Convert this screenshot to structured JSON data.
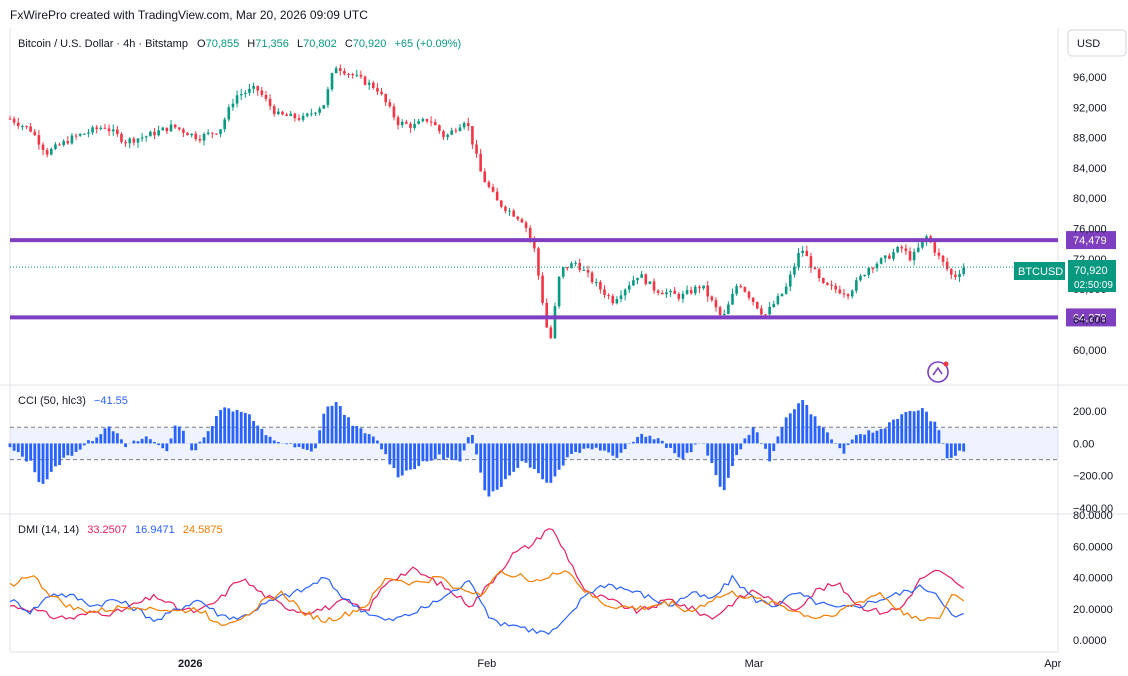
{
  "header": {
    "attribution": "FxWirePro created with TradingView.com, Mar 20, 2026 09:09 UTC",
    "currency": "USD"
  },
  "legend": {
    "symbol": "Bitcoin / U.S. Dollar · 4h · Bitstamp",
    "open_label": "O",
    "open": "70,855",
    "high_label": "H",
    "high": "71,356",
    "low_label": "L",
    "low": "70,802",
    "close_label": "C",
    "close": "70,920",
    "change": "+65 (+0.09%)"
  },
  "price_tag": {
    "ticker": "BTCUSD",
    "price": "70,920",
    "countdown": "02:50:09"
  },
  "colors": {
    "up": "#089981",
    "down": "#f23645",
    "level": "#7e3fc0",
    "cci": "#2962ff",
    "dmi_plus": "#e91e63",
    "dmi_minus": "#2962ff",
    "adx": "#f57c00"
  },
  "chart_data": [
    {
      "type": "candlestick",
      "title": "Bitcoin / U.S. Dollar · 4h · Bitstamp",
      "x_ticks": [
        "2026",
        "Feb",
        "Mar",
        "Apr"
      ],
      "y_ticks": [
        "60,000",
        "64,000",
        "68,000",
        "72,000",
        "76,000",
        "80,000",
        "84,000",
        "88,000",
        "92,000",
        "96,000"
      ],
      "ylim": [
        58000,
        98500
      ],
      "levels": [
        {
          "value": 74479,
          "label": "74,479"
        },
        {
          "value": 64278,
          "label": "64,278"
        }
      ],
      "last_price": 70920,
      "path": [
        {
          "x": 0.0,
          "y": 90500
        },
        {
          "x": 0.02,
          "y": 89000
        },
        {
          "x": 0.035,
          "y": 86000
        },
        {
          "x": 0.06,
          "y": 88000
        },
        {
          "x": 0.09,
          "y": 89500
        },
        {
          "x": 0.11,
          "y": 87500
        },
        {
          "x": 0.13,
          "y": 88200
        },
        {
          "x": 0.155,
          "y": 89500
        },
        {
          "x": 0.18,
          "y": 88000
        },
        {
          "x": 0.2,
          "y": 89000
        },
        {
          "x": 0.215,
          "y": 93500
        },
        {
          "x": 0.235,
          "y": 94500
        },
        {
          "x": 0.255,
          "y": 91000
        },
        {
          "x": 0.28,
          "y": 90500
        },
        {
          "x": 0.3,
          "y": 92500
        },
        {
          "x": 0.31,
          "y": 97500
        },
        {
          "x": 0.33,
          "y": 96000
        },
        {
          "x": 0.35,
          "y": 94500
        },
        {
          "x": 0.37,
          "y": 90000
        },
        {
          "x": 0.385,
          "y": 89500
        },
        {
          "x": 0.4,
          "y": 90500
        },
        {
          "x": 0.415,
          "y": 88000
        },
        {
          "x": 0.435,
          "y": 90500
        },
        {
          "x": 0.45,
          "y": 83000
        },
        {
          "x": 0.465,
          "y": 79500
        },
        {
          "x": 0.49,
          "y": 77000
        },
        {
          "x": 0.5,
          "y": 73500
        },
        {
          "x": 0.515,
          "y": 60500
        },
        {
          "x": 0.525,
          "y": 70500
        },
        {
          "x": 0.54,
          "y": 71500
        },
        {
          "x": 0.56,
          "y": 68500
        },
        {
          "x": 0.575,
          "y": 66500
        },
        {
          "x": 0.6,
          "y": 70000
        },
        {
          "x": 0.615,
          "y": 68000
        },
        {
          "x": 0.64,
          "y": 67000
        },
        {
          "x": 0.66,
          "y": 68500
        },
        {
          "x": 0.68,
          "y": 64000
        },
        {
          "x": 0.695,
          "y": 69000
        },
        {
          "x": 0.72,
          "y": 64500
        },
        {
          "x": 0.74,
          "y": 68000
        },
        {
          "x": 0.755,
          "y": 73500
        },
        {
          "x": 0.775,
          "y": 68500
        },
        {
          "x": 0.8,
          "y": 67500
        },
        {
          "x": 0.82,
          "y": 71000
        },
        {
          "x": 0.835,
          "y": 72000
        },
        {
          "x": 0.85,
          "y": 73500
        },
        {
          "x": 0.86,
          "y": 72000
        },
        {
          "x": 0.875,
          "y": 75000
        },
        {
          "x": 0.885,
          "y": 72500
        },
        {
          "x": 0.9,
          "y": 69500
        },
        {
          "x": 0.91,
          "y": 70920
        }
      ]
    },
    {
      "type": "bar",
      "title": "CCI (50, hlc3)",
      "value_label": "−41.55",
      "y_ticks": [
        "200.00",
        "0.00",
        "−200.00",
        "−400.00"
      ],
      "ylim": [
        -400,
        300
      ],
      "band": [
        -100,
        100
      ],
      "path": [
        {
          "x": 0.0,
          "y": -30
        },
        {
          "x": 0.02,
          "y": -120
        },
        {
          "x": 0.03,
          "y": -260
        },
        {
          "x": 0.05,
          "y": -100
        },
        {
          "x": 0.07,
          "y": -20
        },
        {
          "x": 0.085,
          "y": 60
        },
        {
          "x": 0.095,
          "y": 120
        },
        {
          "x": 0.11,
          "y": -20
        },
        {
          "x": 0.13,
          "y": 40
        },
        {
          "x": 0.15,
          "y": -40
        },
        {
          "x": 0.16,
          "y": 140
        },
        {
          "x": 0.175,
          "y": -60
        },
        {
          "x": 0.19,
          "y": 80
        },
        {
          "x": 0.2,
          "y": 220
        },
        {
          "x": 0.225,
          "y": 200
        },
        {
          "x": 0.245,
          "y": 40
        },
        {
          "x": 0.27,
          "y": -20
        },
        {
          "x": 0.29,
          "y": -60
        },
        {
          "x": 0.3,
          "y": 200
        },
        {
          "x": 0.31,
          "y": 260
        },
        {
          "x": 0.33,
          "y": 100
        },
        {
          "x": 0.35,
          "y": 20
        },
        {
          "x": 0.37,
          "y": -200
        },
        {
          "x": 0.385,
          "y": -150
        },
        {
          "x": 0.41,
          "y": -80
        },
        {
          "x": 0.43,
          "y": -120
        },
        {
          "x": 0.44,
          "y": 80
        },
        {
          "x": 0.455,
          "y": -330
        },
        {
          "x": 0.47,
          "y": -250
        },
        {
          "x": 0.49,
          "y": -100
        },
        {
          "x": 0.515,
          "y": -250
        },
        {
          "x": 0.535,
          "y": -60
        },
        {
          "x": 0.56,
          "y": -20
        },
        {
          "x": 0.58,
          "y": -80
        },
        {
          "x": 0.6,
          "y": 60
        },
        {
          "x": 0.62,
          "y": 20
        },
        {
          "x": 0.64,
          "y": -100
        },
        {
          "x": 0.66,
          "y": 20
        },
        {
          "x": 0.68,
          "y": -300
        },
        {
          "x": 0.7,
          "y": 20
        },
        {
          "x": 0.71,
          "y": 100
        },
        {
          "x": 0.725,
          "y": -100
        },
        {
          "x": 0.74,
          "y": 150
        },
        {
          "x": 0.755,
          "y": 280
        },
        {
          "x": 0.77,
          "y": 140
        },
        {
          "x": 0.795,
          "y": -60
        },
        {
          "x": 0.81,
          "y": 60
        },
        {
          "x": 0.83,
          "y": 80
        },
        {
          "x": 0.845,
          "y": 160
        },
        {
          "x": 0.87,
          "y": 220
        },
        {
          "x": 0.885,
          "y": 100
        },
        {
          "x": 0.895,
          "y": -100
        },
        {
          "x": 0.91,
          "y": -42
        }
      ]
    },
    {
      "type": "line",
      "title": "DMI (14, 14)",
      "y_ticks": [
        "80.0000",
        "60.0000",
        "40.0000",
        "20.0000",
        "0.0000"
      ],
      "ylim": [
        0,
        80
      ],
      "series": [
        {
          "name": "",
          "value_label": "33.2507",
          "color": "#e91e63",
          "points": [
            [
              0,
              22
            ],
            [
              0.02,
              20
            ],
            [
              0.04,
              15
            ],
            [
              0.06,
              14
            ],
            [
              0.08,
              18
            ],
            [
              0.1,
              17
            ],
            [
              0.12,
              23
            ],
            [
              0.14,
              28
            ],
            [
              0.16,
              20
            ],
            [
              0.18,
              18
            ],
            [
              0.2,
              26
            ],
            [
              0.22,
              40
            ],
            [
              0.24,
              30
            ],
            [
              0.26,
              22
            ],
            [
              0.28,
              18
            ],
            [
              0.3,
              20
            ],
            [
              0.32,
              25
            ],
            [
              0.34,
              18
            ],
            [
              0.36,
              38
            ],
            [
              0.385,
              45
            ],
            [
              0.41,
              36
            ],
            [
              0.44,
              22
            ],
            [
              0.46,
              38
            ],
            [
              0.48,
              55
            ],
            [
              0.5,
              62
            ],
            [
              0.515,
              73
            ],
            [
              0.53,
              56
            ],
            [
              0.55,
              30
            ],
            [
              0.57,
              26
            ],
            [
              0.6,
              18
            ],
            [
              0.63,
              26
            ],
            [
              0.65,
              20
            ],
            [
              0.67,
              14
            ],
            [
              0.69,
              24
            ],
            [
              0.71,
              32
            ],
            [
              0.73,
              24
            ],
            [
              0.75,
              20
            ],
            [
              0.77,
              32
            ],
            [
              0.79,
              36
            ],
            [
              0.81,
              22
            ],
            [
              0.83,
              18
            ],
            [
              0.85,
              20
            ],
            [
              0.87,
              40
            ],
            [
              0.885,
              44
            ],
            [
              0.9,
              38
            ],
            [
              0.91,
              33
            ]
          ]
        },
        {
          "name": "",
          "value_label": "16.9471",
          "color": "#2962ff",
          "points": [
            [
              0,
              26
            ],
            [
              0.02,
              18
            ],
            [
              0.04,
              30
            ],
            [
              0.06,
              28
            ],
            [
              0.08,
              22
            ],
            [
              0.1,
              26
            ],
            [
              0.12,
              20
            ],
            [
              0.14,
              12
            ],
            [
              0.16,
              20
            ],
            [
              0.18,
              26
            ],
            [
              0.2,
              16
            ],
            [
              0.22,
              14
            ],
            [
              0.24,
              22
            ],
            [
              0.26,
              28
            ],
            [
              0.28,
              32
            ],
            [
              0.3,
              40
            ],
            [
              0.32,
              26
            ],
            [
              0.34,
              18
            ],
            [
              0.36,
              12
            ],
            [
              0.38,
              16
            ],
            [
              0.4,
              22
            ],
            [
              0.42,
              30
            ],
            [
              0.44,
              38
            ],
            [
              0.46,
              12
            ],
            [
              0.48,
              10
            ],
            [
              0.5,
              6
            ],
            [
              0.515,
              4
            ],
            [
              0.53,
              12
            ],
            [
              0.55,
              30
            ],
            [
              0.57,
              36
            ],
            [
              0.6,
              30
            ],
            [
              0.63,
              22
            ],
            [
              0.65,
              30
            ],
            [
              0.67,
              26
            ],
            [
              0.69,
              40
            ],
            [
              0.71,
              26
            ],
            [
              0.73,
              22
            ],
            [
              0.75,
              30
            ],
            [
              0.77,
              24
            ],
            [
              0.79,
              20
            ],
            [
              0.81,
              22
            ],
            [
              0.83,
              26
            ],
            [
              0.85,
              30
            ],
            [
              0.87,
              34
            ],
            [
              0.885,
              30
            ],
            [
              0.9,
              14
            ],
            [
              0.91,
              17
            ]
          ]
        },
        {
          "name": "",
          "value_label": "24.5875",
          "color": "#f57c00",
          "points": [
            [
              0,
              35
            ],
            [
              0.02,
              42
            ],
            [
              0.04,
              28
            ],
            [
              0.06,
              20
            ],
            [
              0.08,
              18
            ],
            [
              0.1,
              20
            ],
            [
              0.12,
              22
            ],
            [
              0.14,
              20
            ],
            [
              0.16,
              18
            ],
            [
              0.18,
              20
            ],
            [
              0.2,
              10
            ],
            [
              0.22,
              14
            ],
            [
              0.24,
              24
            ],
            [
              0.26,
              30
            ],
            [
              0.28,
              18
            ],
            [
              0.3,
              12
            ],
            [
              0.32,
              16
            ],
            [
              0.34,
              22
            ],
            [
              0.36,
              40
            ],
            [
              0.385,
              36
            ],
            [
              0.41,
              40
            ],
            [
              0.43,
              32
            ],
            [
              0.45,
              30
            ],
            [
              0.47,
              44
            ],
            [
              0.49,
              40
            ],
            [
              0.51,
              38
            ],
            [
              0.53,
              46
            ],
            [
              0.55,
              30
            ],
            [
              0.57,
              22
            ],
            [
              0.6,
              20
            ],
            [
              0.63,
              24
            ],
            [
              0.65,
              18
            ],
            [
              0.67,
              26
            ],
            [
              0.69,
              30
            ],
            [
              0.71,
              26
            ],
            [
              0.73,
              24
            ],
            [
              0.75,
              18
            ],
            [
              0.77,
              14
            ],
            [
              0.79,
              18
            ],
            [
              0.81,
              24
            ],
            [
              0.83,
              30
            ],
            [
              0.85,
              18
            ],
            [
              0.87,
              14
            ],
            [
              0.885,
              12
            ],
            [
              0.9,
              30
            ],
            [
              0.91,
              25
            ]
          ]
        }
      ]
    }
  ]
}
